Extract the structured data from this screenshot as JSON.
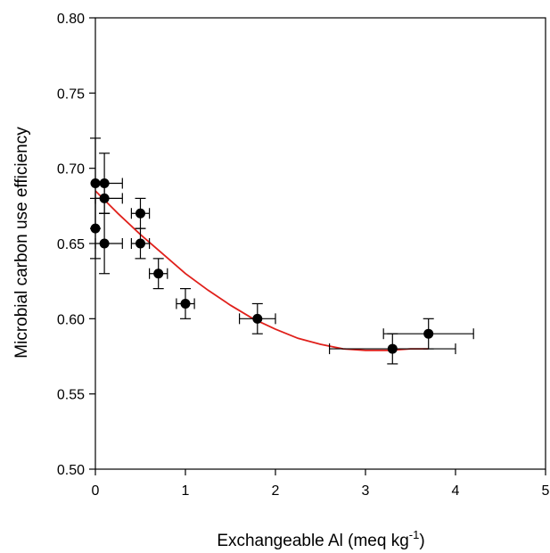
{
  "chart_data": {
    "type": "scatter",
    "title": "",
    "xlabel_main": "Exchangeable Al (meq kg",
    "xlabel_sup": "-1",
    "xlabel_close": ")",
    "ylabel": "Microbial carbon use efficiency",
    "xlim": [
      0,
      5
    ],
    "ylim": [
      0.5,
      0.8
    ],
    "x_ticks": [
      0,
      1,
      2,
      3,
      4,
      5
    ],
    "x_tick_labels": [
      "0",
      "1",
      "2",
      "3",
      "4",
      "5"
    ],
    "y_ticks": [
      0.5,
      0.55,
      0.6,
      0.65,
      0.7,
      0.75,
      0.8
    ],
    "y_tick_labels": [
      "0.50",
      "0.55",
      "0.60",
      "0.65",
      "0.70",
      "0.75",
      "0.80"
    ],
    "grid": false,
    "colors": {
      "points": "#000000",
      "fit_line": "#e0201b",
      "axes": "#000000"
    },
    "points": [
      {
        "x": 0.0,
        "y": 0.69,
        "xerr": 0.0,
        "yerr": 0.03
      },
      {
        "x": 0.1,
        "y": 0.69,
        "xerr": 0.2,
        "yerr": 0.02
      },
      {
        "x": 0.1,
        "y": 0.68,
        "xerr": 0.2,
        "yerr": 0.01
      },
      {
        "x": 0.0,
        "y": 0.66,
        "xerr": 0.0,
        "yerr": 0.02
      },
      {
        "x": 0.1,
        "y": 0.65,
        "xerr": 0.2,
        "yerr": 0.02
      },
      {
        "x": 0.5,
        "y": 0.67,
        "xerr": 0.1,
        "yerr": 0.01
      },
      {
        "x": 0.5,
        "y": 0.65,
        "xerr": 0.1,
        "yerr": 0.01
      },
      {
        "x": 0.7,
        "y": 0.63,
        "xerr": 0.1,
        "yerr": 0.01
      },
      {
        "x": 1.0,
        "y": 0.61,
        "xerr": 0.1,
        "yerr": 0.01
      },
      {
        "x": 1.8,
        "y": 0.6,
        "xerr": 0.2,
        "yerr": 0.01
      },
      {
        "x": 3.3,
        "y": 0.58,
        "xerr": 0.7,
        "yerr": 0.01
      },
      {
        "x": 3.7,
        "y": 0.59,
        "xerr": 0.5,
        "yerr": 0.01
      }
    ],
    "fit_curve": {
      "x": [
        0,
        0.25,
        0.5,
        0.75,
        1.0,
        1.25,
        1.5,
        1.75,
        2.0,
        2.25,
        2.5,
        2.75,
        3.0,
        3.25,
        3.5,
        3.7
      ],
      "y": [
        0.685,
        0.67,
        0.656,
        0.643,
        0.63,
        0.619,
        0.609,
        0.6,
        0.593,
        0.587,
        0.583,
        0.58,
        0.579,
        0.579,
        0.58,
        0.58
      ]
    }
  }
}
